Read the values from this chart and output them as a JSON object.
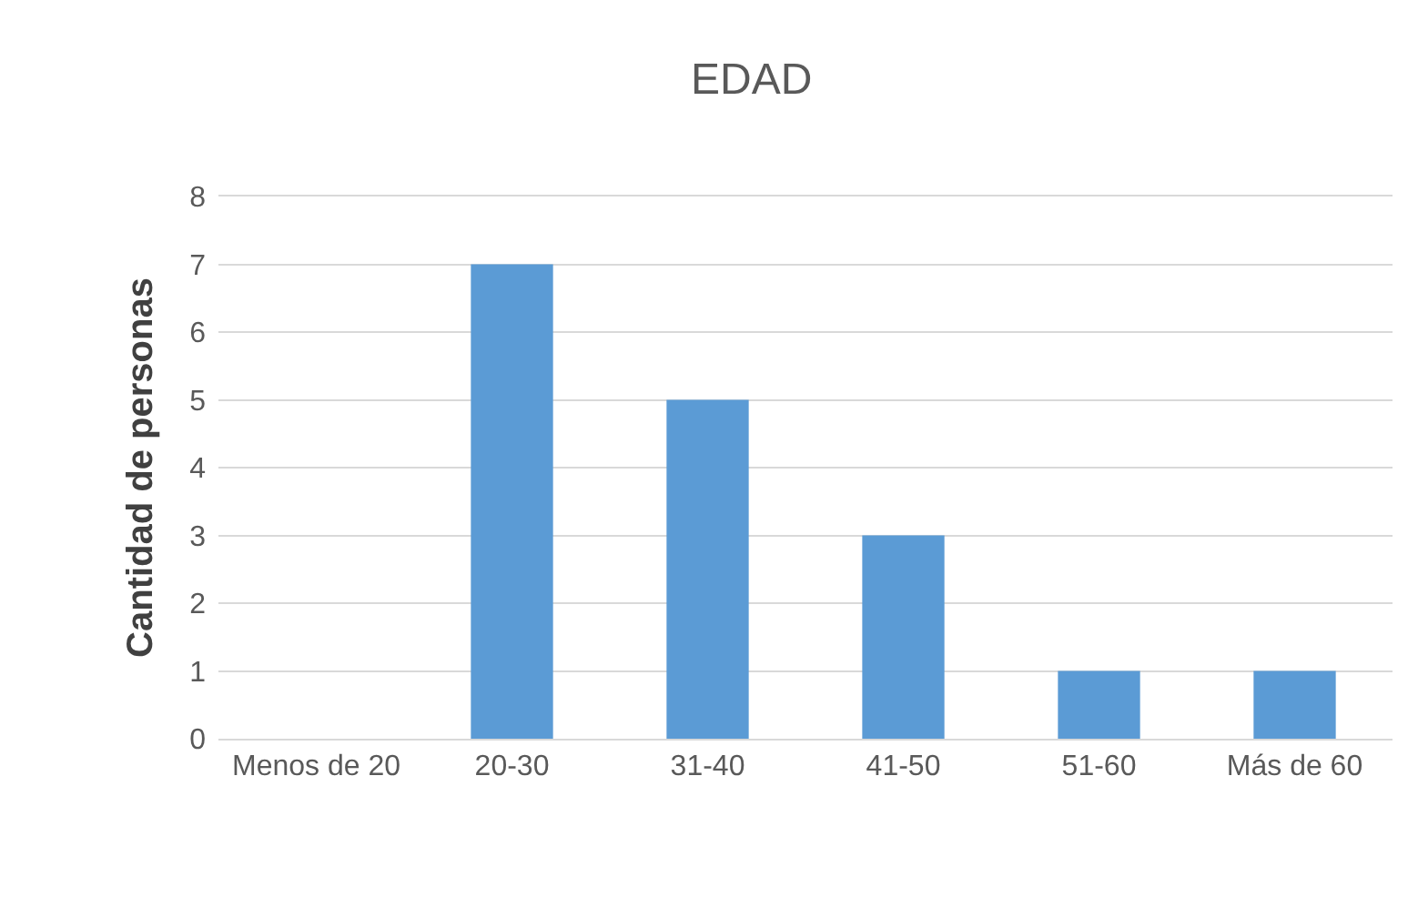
{
  "chart_data": {
    "type": "bar",
    "title": "EDAD",
    "ylabel": "Cantidad de personas",
    "categories": [
      "Menos de 20",
      "20-30",
      "31-40",
      "41-50",
      "51-60",
      "Más de 60"
    ],
    "values": [
      0,
      7,
      5,
      3,
      1,
      1
    ],
    "color": "#5b9bd5",
    "ylim": [
      0,
      8
    ],
    "yticks": [
      0,
      1,
      2,
      3,
      4,
      5,
      6,
      7,
      8
    ],
    "grid": "y",
    "legend": false
  }
}
